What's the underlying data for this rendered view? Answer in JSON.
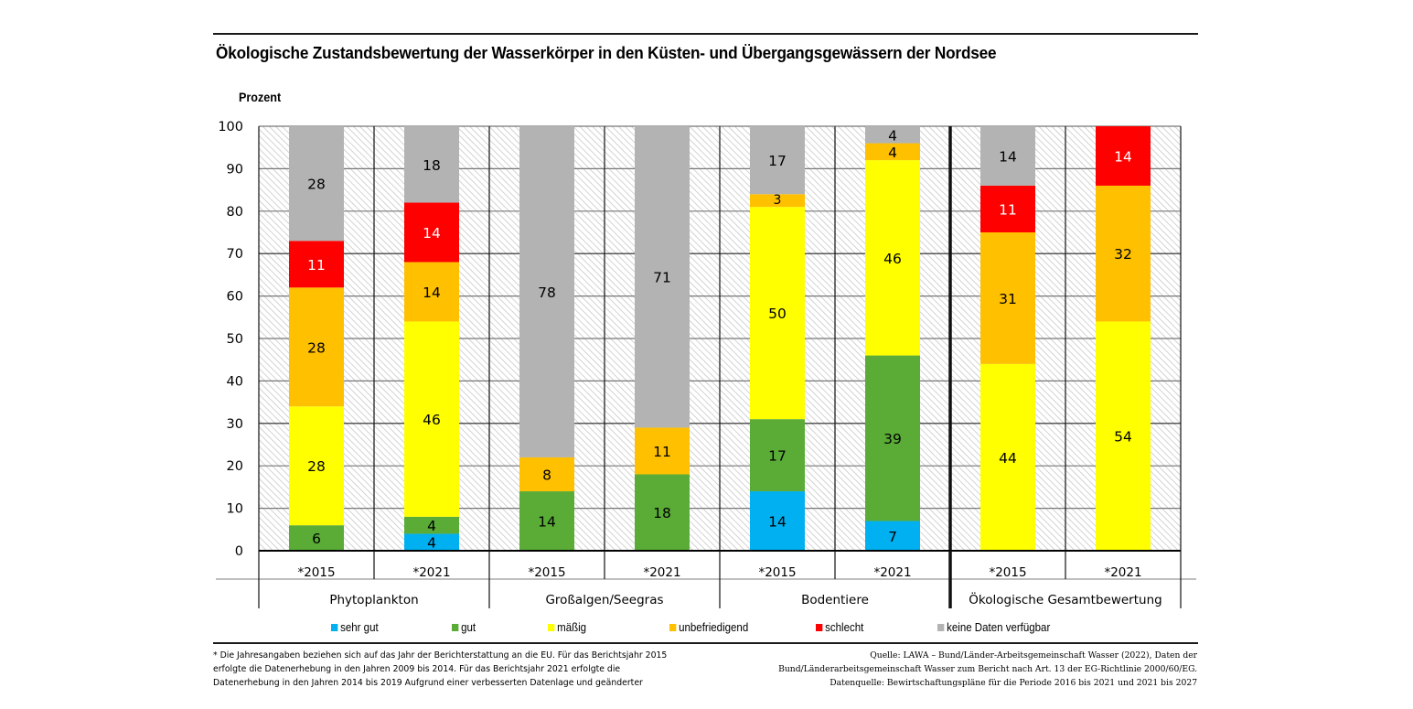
{
  "chart_data": {
    "type": "bar",
    "stacked": true,
    "title": "Ökologische Zustandsbewertung der Wasserkörper in den Küsten- und Übergangsgewässern der Nordsee",
    "ylabel": "Prozent",
    "xlabel": "",
    "ylim": [
      0,
      100
    ],
    "yticks": [
      0,
      10,
      20,
      30,
      40,
      50,
      60,
      70,
      80,
      90,
      100
    ],
    "grid": true,
    "legend_position": "bottom",
    "groups": [
      {
        "label": "Phytoplankton",
        "categories": [
          "*2015",
          "*2021"
        ]
      },
      {
        "label": "Großalgen/Seegras",
        "categories": [
          "*2015",
          "*2021"
        ]
      },
      {
        "label": "Bodentiere",
        "categories": [
          "*2015",
          "*2021"
        ]
      },
      {
        "label": "Ökologische Gesamtbewertung",
        "categories": [
          "*2015",
          "*2021"
        ]
      }
    ],
    "categories": [
      "*2015",
      "*2021",
      "*2015",
      "*2021",
      "*2015",
      "*2021",
      "*2015",
      "*2021"
    ],
    "series": [
      {
        "name": "sehr gut",
        "color": "#00b0f0",
        "label_color": "#000000",
        "values": [
          0,
          4,
          0,
          0,
          14,
          7,
          0,
          0
        ]
      },
      {
        "name": "gut",
        "color": "#5aac37",
        "label_color": "#000000",
        "values": [
          6,
          4,
          14,
          18,
          17,
          39,
          0,
          0
        ]
      },
      {
        "name": "mäßig",
        "color": "#ffff00",
        "label_color": "#000000",
        "values": [
          28,
          46,
          0,
          0,
          50,
          46,
          44,
          54
        ]
      },
      {
        "name": "unbefriedigend",
        "color": "#ffc000",
        "label_color": "#000000",
        "values": [
          28,
          14,
          8,
          11,
          3,
          4,
          31,
          32
        ]
      },
      {
        "name": "schlecht",
        "color": "#ff0000",
        "label_color": "#ffffff",
        "values": [
          11,
          14,
          0,
          0,
          0,
          0,
          11,
          14
        ]
      },
      {
        "name": "keine Daten verfügbar",
        "color": "#b3b3b3",
        "label_color": "#000000",
        "values": [
          28,
          18,
          78,
          71,
          17,
          4,
          14,
          0
        ]
      }
    ]
  },
  "footnote": [
    "* Die Jahresangaben beziehen sich auf das Jahr der Berichterstattung an die EU. Für das Berichtsjahr 2015",
    "erfolgte die Datenerhebung in den Jahren 2009 bis 2014. Für das Berichtsjahr 2021 erfolgte die",
    "Datenerhebung in den Jahren 2014 bis 2019 Aufgrund einer verbesserten Datenlage und geänderter"
  ],
  "source": [
    "Quelle: LAWA – Bund/Länder-Arbeitsgemeinschaft Wasser (2022), Daten der",
    "Bund/Länderarbeitsgemeinschaft Wasser zum Bericht nach Art. 13 der EG-Richtlinie 2000/60/EG.",
    "Datenquelle: Bewirtschaftungspläne für die Periode 2016 bis 2021 und 2021 bis 2027"
  ]
}
